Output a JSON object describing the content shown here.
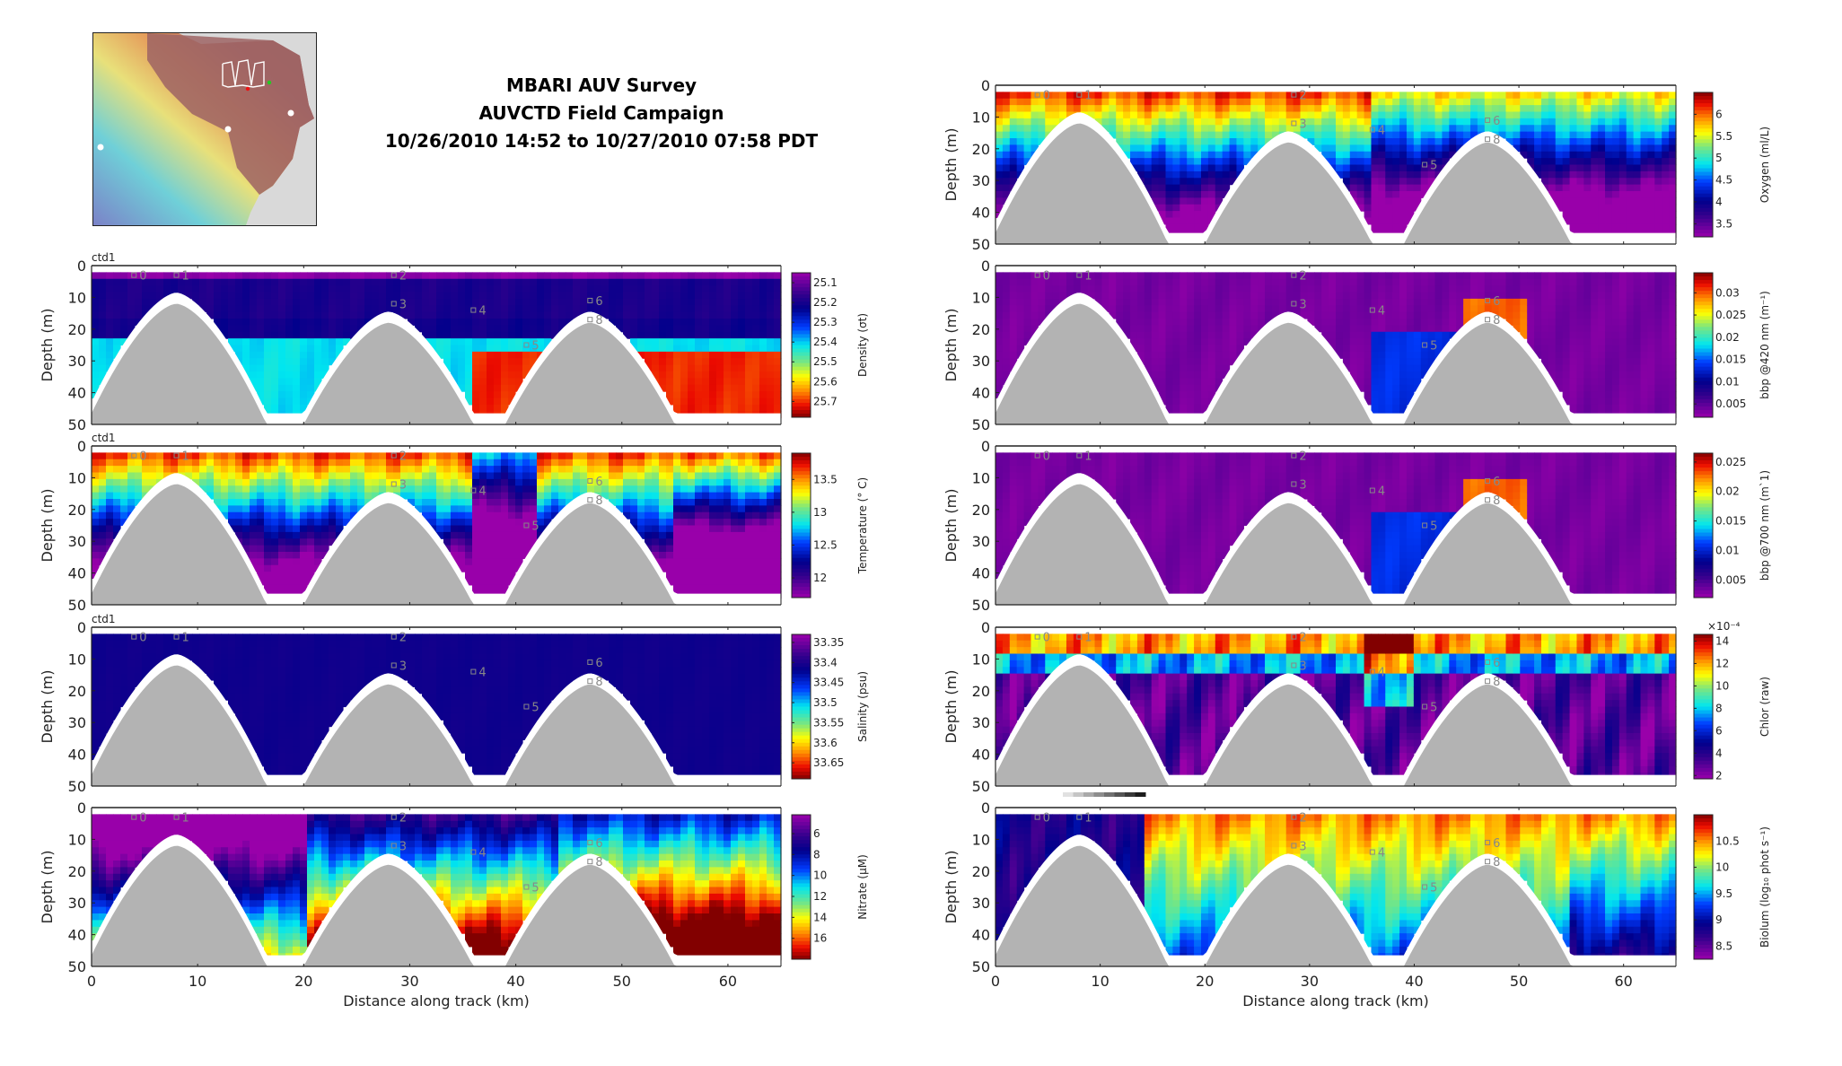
{
  "header": {
    "line1": "MBARI AUV Survey",
    "line2": "AUVCTD Field Campaign",
    "line3": "10/26/2010 14:52 to 10/27/2010 07:58 PDT"
  },
  "map": {
    "track_color": "#ffffff",
    "start_marker_color": "#22cc22",
    "end_marker_color": "#ee1111"
  },
  "chart_data": [
    {
      "type": "heatmap",
      "id": "density",
      "ylabel": "Depth (m)",
      "xlabel": "",
      "tag": "ctd1",
      "xlim": [
        0,
        65
      ],
      "ylim": [
        50,
        0
      ],
      "yticks": [
        "0",
        "10",
        "20",
        "30",
        "40",
        "50"
      ],
      "xticks": [],
      "colorbar": {
        "title": "Density (σt)",
        "ticks": [
          "25.1",
          "25.2",
          "25.3",
          "25.4",
          "25.5",
          "25.6",
          "25.7"
        ],
        "range": [
          25.05,
          25.78
        ],
        "reversed": true
      },
      "waypoints": [
        "0",
        "1",
        "2",
        "3",
        "4",
        "5",
        "6",
        "8"
      ],
      "dominant_colors": [
        "#aa00aa",
        "#c8c8c8",
        "#000080",
        "#40e0c0",
        "#ee2200"
      ]
    },
    {
      "type": "heatmap",
      "id": "temperature",
      "ylabel": "Depth (m)",
      "xlabel": "",
      "tag": "ctd1",
      "xlim": [
        0,
        65
      ],
      "ylim": [
        50,
        0
      ],
      "yticks": [
        "0",
        "10",
        "20",
        "30",
        "40",
        "50"
      ],
      "xticks": [],
      "colorbar": {
        "title": "Temperature (° C)",
        "ticks": [
          "12",
          "12.5",
          "13",
          "13.5"
        ],
        "range": [
          11.7,
          13.9
        ],
        "reversed": false
      },
      "waypoints": [
        "0",
        "1",
        "2",
        "3",
        "4",
        "5",
        "6",
        "8"
      ]
    },
    {
      "type": "heatmap",
      "id": "salinity",
      "ylabel": "Depth (m)",
      "xlabel": "",
      "tag": "ctd1",
      "xlim": [
        0,
        65
      ],
      "ylim": [
        50,
        0
      ],
      "yticks": [
        "0",
        "10",
        "20",
        "30",
        "40",
        "50"
      ],
      "xticks": [],
      "colorbar": {
        "title": "Salinity (psu)",
        "ticks": [
          "33.35",
          "33.4",
          "33.45",
          "33.5",
          "33.55",
          "33.6",
          "33.65"
        ],
        "range": [
          33.33,
          33.69
        ],
        "reversed": true
      },
      "waypoints": [
        "0",
        "1",
        "2",
        "3",
        "4",
        "5",
        "6",
        "8"
      ]
    },
    {
      "type": "heatmap",
      "id": "nitrate",
      "ylabel": "Depth (m)",
      "xlabel": "Distance along track (km)",
      "tag": "",
      "xlim": [
        0,
        65
      ],
      "ylim": [
        50,
        0
      ],
      "yticks": [
        "0",
        "10",
        "20",
        "30",
        "40",
        "50"
      ],
      "xticks": [
        "0",
        "10",
        "20",
        "30",
        "40",
        "50",
        "60"
      ],
      "colorbar": {
        "title": "Nitrate (μM)",
        "ticks": [
          "6",
          "8",
          "10",
          "12",
          "14",
          "16"
        ],
        "range": [
          4.2,
          18.0
        ],
        "reversed": true
      },
      "waypoints": [
        "0",
        "1",
        "2",
        "3",
        "4",
        "5",
        "6",
        "8"
      ]
    },
    {
      "type": "heatmap",
      "id": "oxygen",
      "ylabel": "Depth (m)",
      "xlabel": "",
      "tag": "",
      "xlim": [
        0,
        65
      ],
      "ylim": [
        50,
        0
      ],
      "yticks": [
        "0",
        "10",
        "20",
        "30",
        "40",
        "50"
      ],
      "xticks": [],
      "colorbar": {
        "title": "Oxygen (ml/L)",
        "ticks": [
          "3.5",
          "4",
          "4.5",
          "5",
          "5.5",
          "6"
        ],
        "range": [
          3.2,
          6.5
        ],
        "reversed": false
      },
      "waypoints": [
        "0",
        "1",
        "2",
        "3",
        "4",
        "5",
        "6",
        "8"
      ]
    },
    {
      "type": "heatmap",
      "id": "bbp420",
      "ylabel": "Depth (m)",
      "xlabel": "",
      "tag": "",
      "xlim": [
        0,
        65
      ],
      "ylim": [
        50,
        0
      ],
      "yticks": [
        "0",
        "10",
        "20",
        "30",
        "40",
        "50"
      ],
      "xticks": [],
      "colorbar": {
        "title": "bbp @420 nm (m⁻¹)",
        "ticks": [
          "0.005",
          "0.01",
          "0.015",
          "0.02",
          "0.025",
          "0.03"
        ],
        "range": [
          0.002,
          0.0345
        ],
        "reversed": false
      },
      "waypoints": [
        "0",
        "1",
        "2",
        "3",
        "4",
        "5",
        "6",
        "8"
      ]
    },
    {
      "type": "heatmap",
      "id": "bbp700",
      "ylabel": "Depth (m)",
      "xlabel": "",
      "tag": "",
      "xlim": [
        0,
        65
      ],
      "ylim": [
        50,
        0
      ],
      "yticks": [
        "0",
        "10",
        "20",
        "30",
        "40",
        "50"
      ],
      "xticks": [],
      "colorbar": {
        "title": "bbp @700 nm (m`1)",
        "ticks": [
          "0.005",
          "0.01",
          "0.015",
          "0.02",
          "0.025"
        ],
        "range": [
          0.002,
          0.0265
        ],
        "reversed": false
      },
      "waypoints": [
        "0",
        "1",
        "2",
        "3",
        "4",
        "5",
        "6",
        "8"
      ]
    },
    {
      "type": "heatmap",
      "id": "chlor",
      "ylabel": "Depth (m)",
      "xlabel": "",
      "tag": "",
      "xlim": [
        0,
        65
      ],
      "ylim": [
        50,
        0
      ],
      "yticks": [
        "0",
        "10",
        "20",
        "30",
        "40",
        "50"
      ],
      "xticks": [],
      "colorbar": {
        "title": "Chlor (raw)",
        "ticks": [
          "2",
          "4",
          "6",
          "8",
          "10",
          "12",
          "14"
        ],
        "range": [
          1.7,
          14.6
        ],
        "reversed": false,
        "exponent": "×10⁻⁴"
      },
      "waypoints": [
        "0",
        "1",
        "2",
        "3",
        "4",
        "5",
        "6",
        "8"
      ]
    },
    {
      "type": "heatmap",
      "id": "biolum",
      "ylabel": "Depth (m)",
      "xlabel": "Distance along track (km)",
      "tag": "",
      "xlim": [
        0,
        65
      ],
      "ylim": [
        50,
        0
      ],
      "yticks": [
        "0",
        "10",
        "20",
        "30",
        "40",
        "50"
      ],
      "xticks": [
        "0",
        "10",
        "20",
        "30",
        "40",
        "50",
        "60"
      ],
      "colorbar": {
        "title": "Biolum (log₁₀ phot s⁻¹)",
        "ticks": [
          "8.5",
          "9",
          "9.5",
          "10",
          "10.5"
        ],
        "range": [
          8.25,
          11.0
        ],
        "reversed": false
      },
      "waypoints": [
        "0",
        "1",
        "2",
        "3",
        "4",
        "5",
        "6",
        "8"
      ]
    }
  ]
}
